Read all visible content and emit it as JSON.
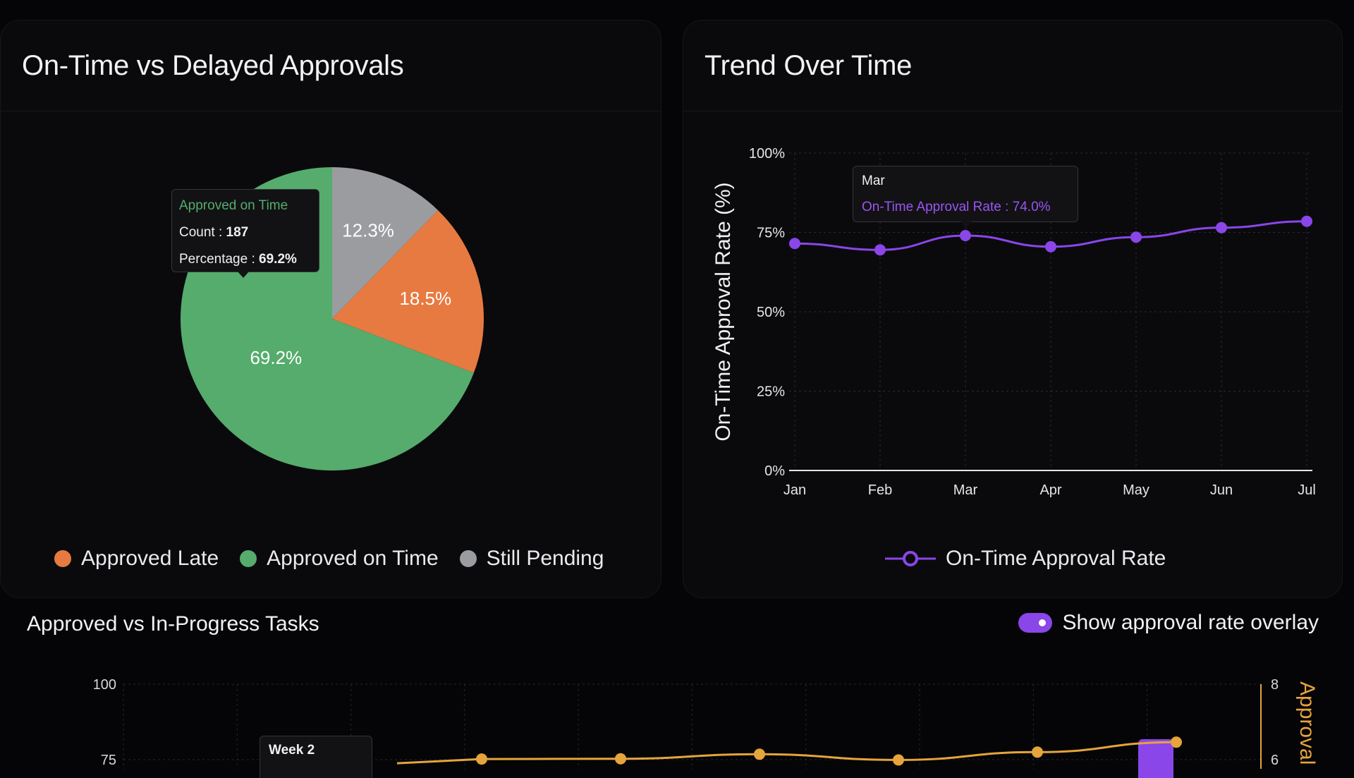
{
  "pie_panel": {
    "title": "On-Time vs Delayed Approvals",
    "tooltip": {
      "title": "Approved on Time",
      "count_label": "Count : ",
      "count_value": "187",
      "pct_label": "Percentage : ",
      "pct_value": "69.2%"
    },
    "legend": [
      {
        "label": "Approved Late",
        "color": "#e77a41"
      },
      {
        "label": "Approved on Time",
        "color": "#55ac6c"
      },
      {
        "label": "Still Pending",
        "color": "#9a9ca0"
      }
    ]
  },
  "trend_panel": {
    "title": "Trend Over Time",
    "tooltip": {
      "title": "Mar",
      "line": "On-Time Approval Rate : 74.0%"
    },
    "legend_label": "On-Time Approval Rate"
  },
  "bottom_panel": {
    "title": "Approved vs In-Progress Tasks",
    "toggle_label": "Show approval rate overlay",
    "toggle_on": true,
    "tooltip_title": "Week 2"
  },
  "colors": {
    "purple": "#8a46e8",
    "orange": "#e5a43c",
    "green": "#55ac6c",
    "late": "#e77a41",
    "pending": "#9a9ca0"
  },
  "chart_data": [
    {
      "type": "pie",
      "title": "On-Time vs Delayed Approvals",
      "slices": [
        {
          "label": "Still Pending",
          "value": 12.3,
          "display": "12.3%"
        },
        {
          "label": "Approved Late",
          "value": 18.5,
          "display": "18.5%"
        },
        {
          "label": "Approved on Time",
          "value": 69.2,
          "display": "69.2%"
        }
      ]
    },
    {
      "type": "line",
      "title": "Trend Over Time",
      "ylabel": "On-Time Approval Rate (%)",
      "ylim": [
        0,
        100
      ],
      "yticks": [
        0,
        25,
        50,
        75,
        100
      ],
      "ytick_labels": [
        "0%",
        "25%",
        "50%",
        "75%",
        "100%"
      ],
      "categories": [
        "Jan",
        "Feb",
        "Mar",
        "Apr",
        "May",
        "Jun",
        "Jul"
      ],
      "series": [
        {
          "name": "On-Time Approval Rate",
          "values": [
            71.5,
            69.5,
            74.0,
            70.5,
            73.5,
            76.5,
            78.5
          ]
        }
      ]
    },
    {
      "type": "line",
      "title": "Approved vs In-Progress Tasks",
      "ytick_labels_left": [
        "100",
        "75"
      ],
      "ytick_labels_right": [
        "8",
        "6"
      ],
      "right_axis_label": "Approval",
      "series": [
        {
          "name": "Approval rate overlay",
          "values": [
            75.2,
            75.3,
            76.8,
            74.9,
            77.5,
            80.8
          ]
        }
      ]
    }
  ]
}
